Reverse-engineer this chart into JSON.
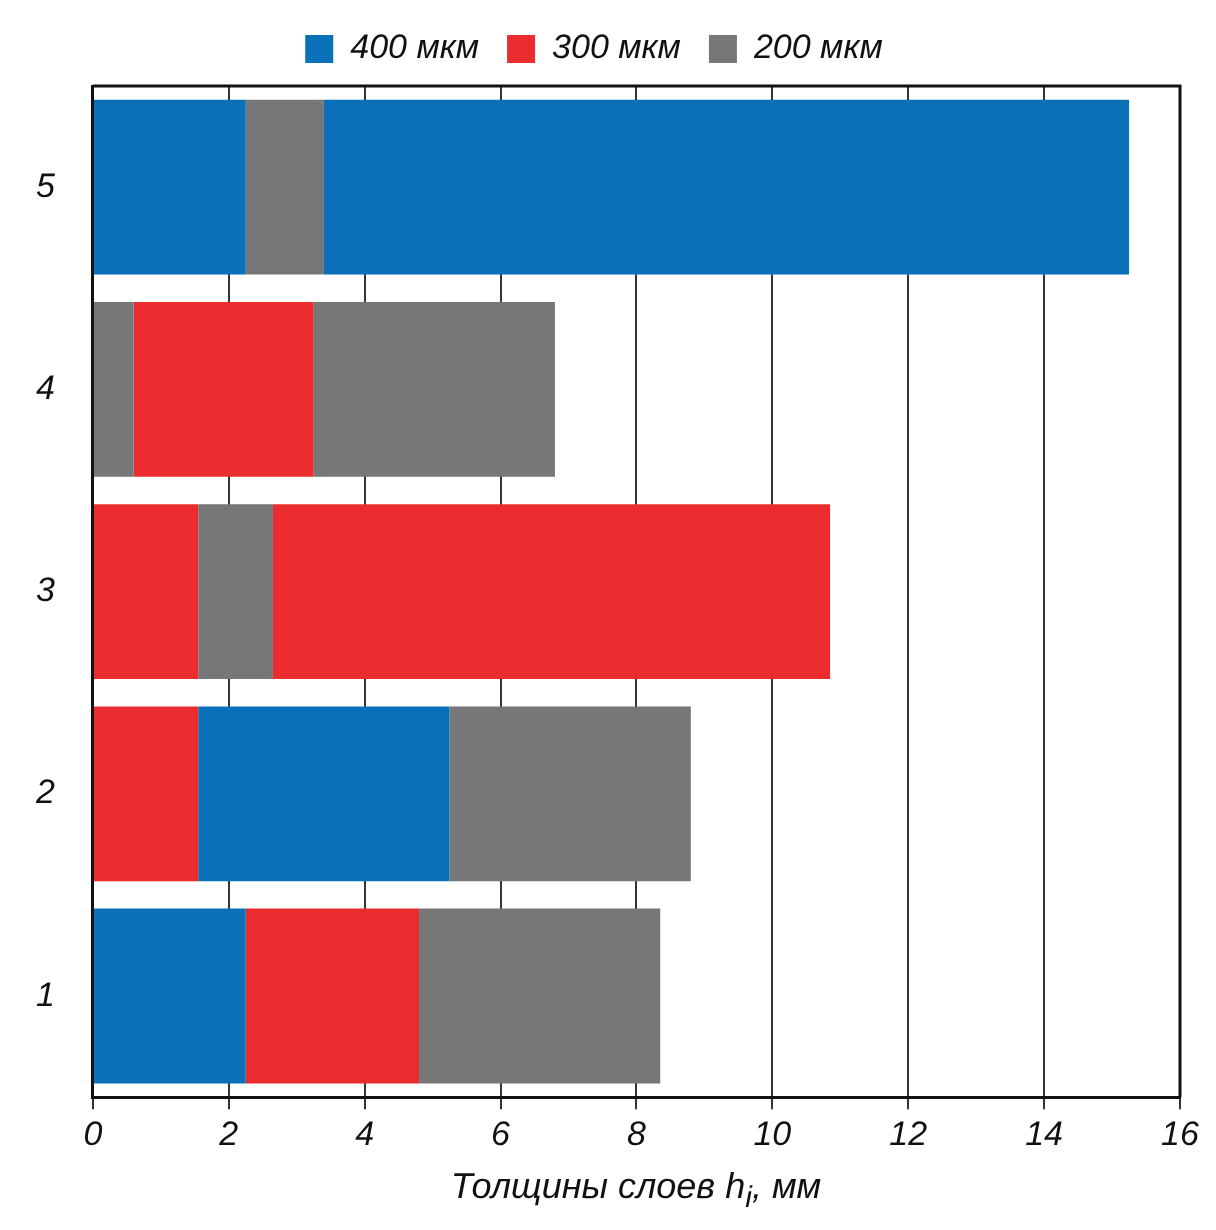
{
  "chart_data": {
    "type": "bar",
    "orientation": "horizontal",
    "stacked": true,
    "categories": [
      "5",
      "4",
      "3",
      "2",
      "1"
    ],
    "series": [
      {
        "name": "400 мкм",
        "color": "#0a70b8",
        "values": [
          2.25,
          null,
          null,
          null,
          2.25
        ]
      },
      {
        "name": "300 мкм",
        "color": "#ea2c2e",
        "values": [
          null,
          null,
          1.55,
          1.55,
          2.55
        ]
      },
      {
        "name": "200 мкм",
        "color": "#757779",
        "values": [
          1.15,
          0.6,
          1.1,
          null,
          3.55
        ]
      },
      {
        "color": "#0a70b8",
        "values": [
          11.85,
          null,
          null,
          3.7,
          null
        ]
      },
      {
        "color": "#ea2c2e",
        "values": [
          null,
          2.65,
          8.2,
          null,
          null
        ]
      },
      {
        "color": "#757779",
        "values": [
          null,
          3.55,
          null,
          3.55,
          null
        ]
      }
    ],
    "xlabel": "Толщины слоев h$_{i}$, мм",
    "xlim": [
      0,
      16
    ],
    "xticks": [
      0,
      2,
      4,
      6,
      8,
      10,
      12,
      14,
      16
    ],
    "grid": "x",
    "legend": "top"
  }
}
